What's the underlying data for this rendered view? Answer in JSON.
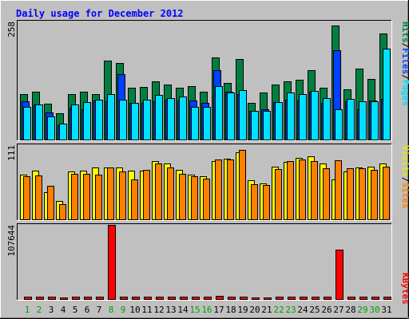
{
  "title": "Daily usage for December 2012",
  "colors": {
    "background": "#c0c0c0",
    "hits": "#008040",
    "files": "#0040ff",
    "pages": "#00e0ff",
    "visits": "#ffff00",
    "sites": "#ff8000",
    "kbytes": "#ff0000",
    "title": "#0000ff",
    "weekend_day": "#00a000"
  },
  "chart_data": [
    {
      "type": "bar",
      "panel": "hits-files-pages",
      "categories": [
        "1",
        "2",
        "3",
        "4",
        "5",
        "6",
        "7",
        "8",
        "9",
        "10",
        "11",
        "12",
        "13",
        "14",
        "15",
        "16",
        "17",
        "18",
        "19",
        "20",
        "21",
        "22",
        "23",
        "24",
        "25",
        "26",
        "27",
        "28",
        "29",
        "30",
        "31"
      ],
      "weekend_days": [
        "1",
        "2",
        "8",
        "9",
        "15",
        "16",
        "22",
        "23",
        "29",
        "30"
      ],
      "ymax_label": "258",
      "ylim": [
        0,
        258
      ],
      "series": [
        {
          "name": "Hits",
          "values": [
            100,
            104,
            79,
            57,
            99,
            104,
            100,
            173,
            168,
            114,
            115,
            127,
            120,
            113,
            117,
            104,
            180,
            124,
            176,
            80,
            102,
            120,
            127,
            130,
            151,
            114,
            249,
            109,
            156,
            133,
            231
          ]
        },
        {
          "name": "Files",
          "values": [
            84,
            77,
            60,
            31,
            69,
            67,
            86,
            83,
            143,
            81,
            81,
            83,
            87,
            86,
            86,
            80,
            152,
            105,
            100,
            63,
            66,
            82,
            88,
            85,
            105,
            80,
            196,
            84,
            66,
            86,
            89
          ]
        },
        {
          "name": "Pages",
          "values": [
            72,
            77,
            51,
            34,
            77,
            82,
            87,
            99,
            87,
            81,
            87,
            97,
            90,
            94,
            72,
            72,
            117,
            102,
            108,
            62,
            62,
            82,
            102,
            99,
            106,
            90,
            66,
            89,
            84,
            84,
            198
          ]
        }
      ],
      "ylabel": [
        "Pages",
        "/",
        "Files",
        "/",
        "Hits"
      ]
    },
    {
      "type": "bar",
      "panel": "visits-sites",
      "categories": [
        "1",
        "2",
        "3",
        "4",
        "5",
        "6",
        "7",
        "8",
        "9",
        "10",
        "11",
        "12",
        "13",
        "14",
        "15",
        "16",
        "17",
        "18",
        "19",
        "20",
        "21",
        "22",
        "23",
        "24",
        "25",
        "26",
        "27",
        "28",
        "29",
        "30",
        "31"
      ],
      "ymax_label": "111",
      "ylim": [
        0,
        111
      ],
      "series": [
        {
          "name": "Visits",
          "values": [
            67,
            73,
            40,
            27,
            72,
            73,
            78,
            77,
            77,
            73,
            73,
            87,
            83,
            74,
            67,
            64,
            87,
            91,
            100,
            59,
            54,
            79,
            86,
            92,
            94,
            84,
            60,
            72,
            77,
            79,
            83
          ]
        },
        {
          "name": "Sites",
          "values": [
            64,
            66,
            50,
            23,
            68,
            68,
            67,
            77,
            72,
            60,
            74,
            83,
            78,
            68,
            65,
            61,
            90,
            90,
            104,
            53,
            51,
            75,
            87,
            89,
            87,
            76,
            88,
            76,
            76,
            74,
            79
          ]
        }
      ],
      "ylabel": [
        "Sites",
        "/",
        "Visits"
      ]
    },
    {
      "type": "bar",
      "panel": "kbytes",
      "categories": [
        "1",
        "2",
        "3",
        "4",
        "5",
        "6",
        "7",
        "8",
        "9",
        "10",
        "11",
        "12",
        "13",
        "14",
        "15",
        "16",
        "17",
        "18",
        "19",
        "20",
        "21",
        "22",
        "23",
        "24",
        "25",
        "26",
        "27",
        "28",
        "29",
        "30",
        "31"
      ],
      "ymax_label": "107644",
      "ylim": [
        0,
        107644
      ],
      "series": [
        {
          "name": "KBytes",
          "values": [
            3200,
            3200,
            3200,
            2600,
            3100,
            3200,
            3100,
            107644,
            3800,
            2900,
            3200,
            3200,
            3300,
            2900,
            3100,
            3100,
            4200,
            3300,
            3300,
            2600,
            2700,
            3200,
            3300,
            3200,
            3400,
            3200,
            71200,
            3700,
            3400,
            3300,
            3400
          ]
        }
      ],
      "ylabel": [
        "KBytes"
      ]
    }
  ]
}
